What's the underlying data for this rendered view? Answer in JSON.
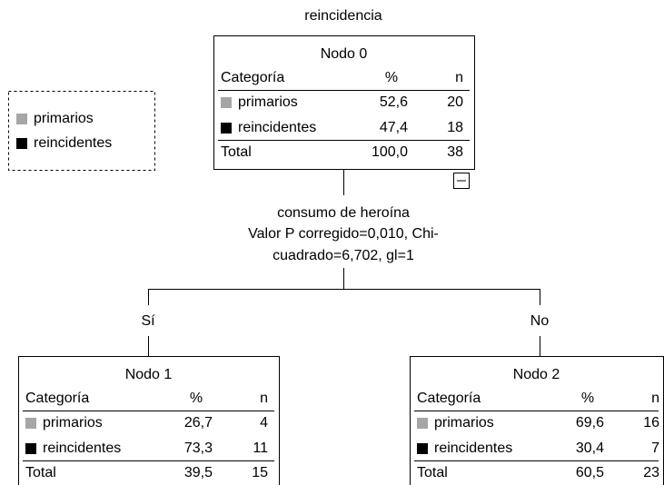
{
  "title": "reincidencia",
  "legend": [
    {
      "label": "primarios",
      "color": "#a6a6a6"
    },
    {
      "label": "reincidentes",
      "color": "#000000"
    }
  ],
  "nodes": [
    {
      "label": "Nodo 0",
      "header": [
        "Categoría",
        "%",
        "n"
      ],
      "rows": [
        [
          "primarios",
          "52,6",
          "20"
        ],
        [
          "reincidentes",
          "47,4",
          "18"
        ]
      ],
      "total": [
        "Total",
        "100,0",
        "38"
      ]
    },
    {
      "label": "Nodo 1",
      "header": [
        "Categoría",
        "%",
        "n"
      ],
      "rows": [
        [
          "primarios",
          "26,7",
          "4"
        ],
        [
          "reincidentes",
          "73,3",
          "11"
        ]
      ],
      "total": [
        "Total",
        "39,5",
        "15"
      ]
    },
    {
      "label": "Nodo 2",
      "header": [
        "Categoría",
        "%",
        "n"
      ],
      "rows": [
        [
          "primarios",
          "69,6",
          "16"
        ],
        [
          "reincidentes",
          "30,4",
          "7"
        ]
      ],
      "total": [
        "Total",
        "60,5",
        "23"
      ]
    }
  ],
  "split": [
    "consumo de heroína",
    "Valor P corregido=0,010, Chi-",
    "cuadrado=6,702, gl=1"
  ],
  "branches": [
    "Sí",
    "No"
  ]
}
